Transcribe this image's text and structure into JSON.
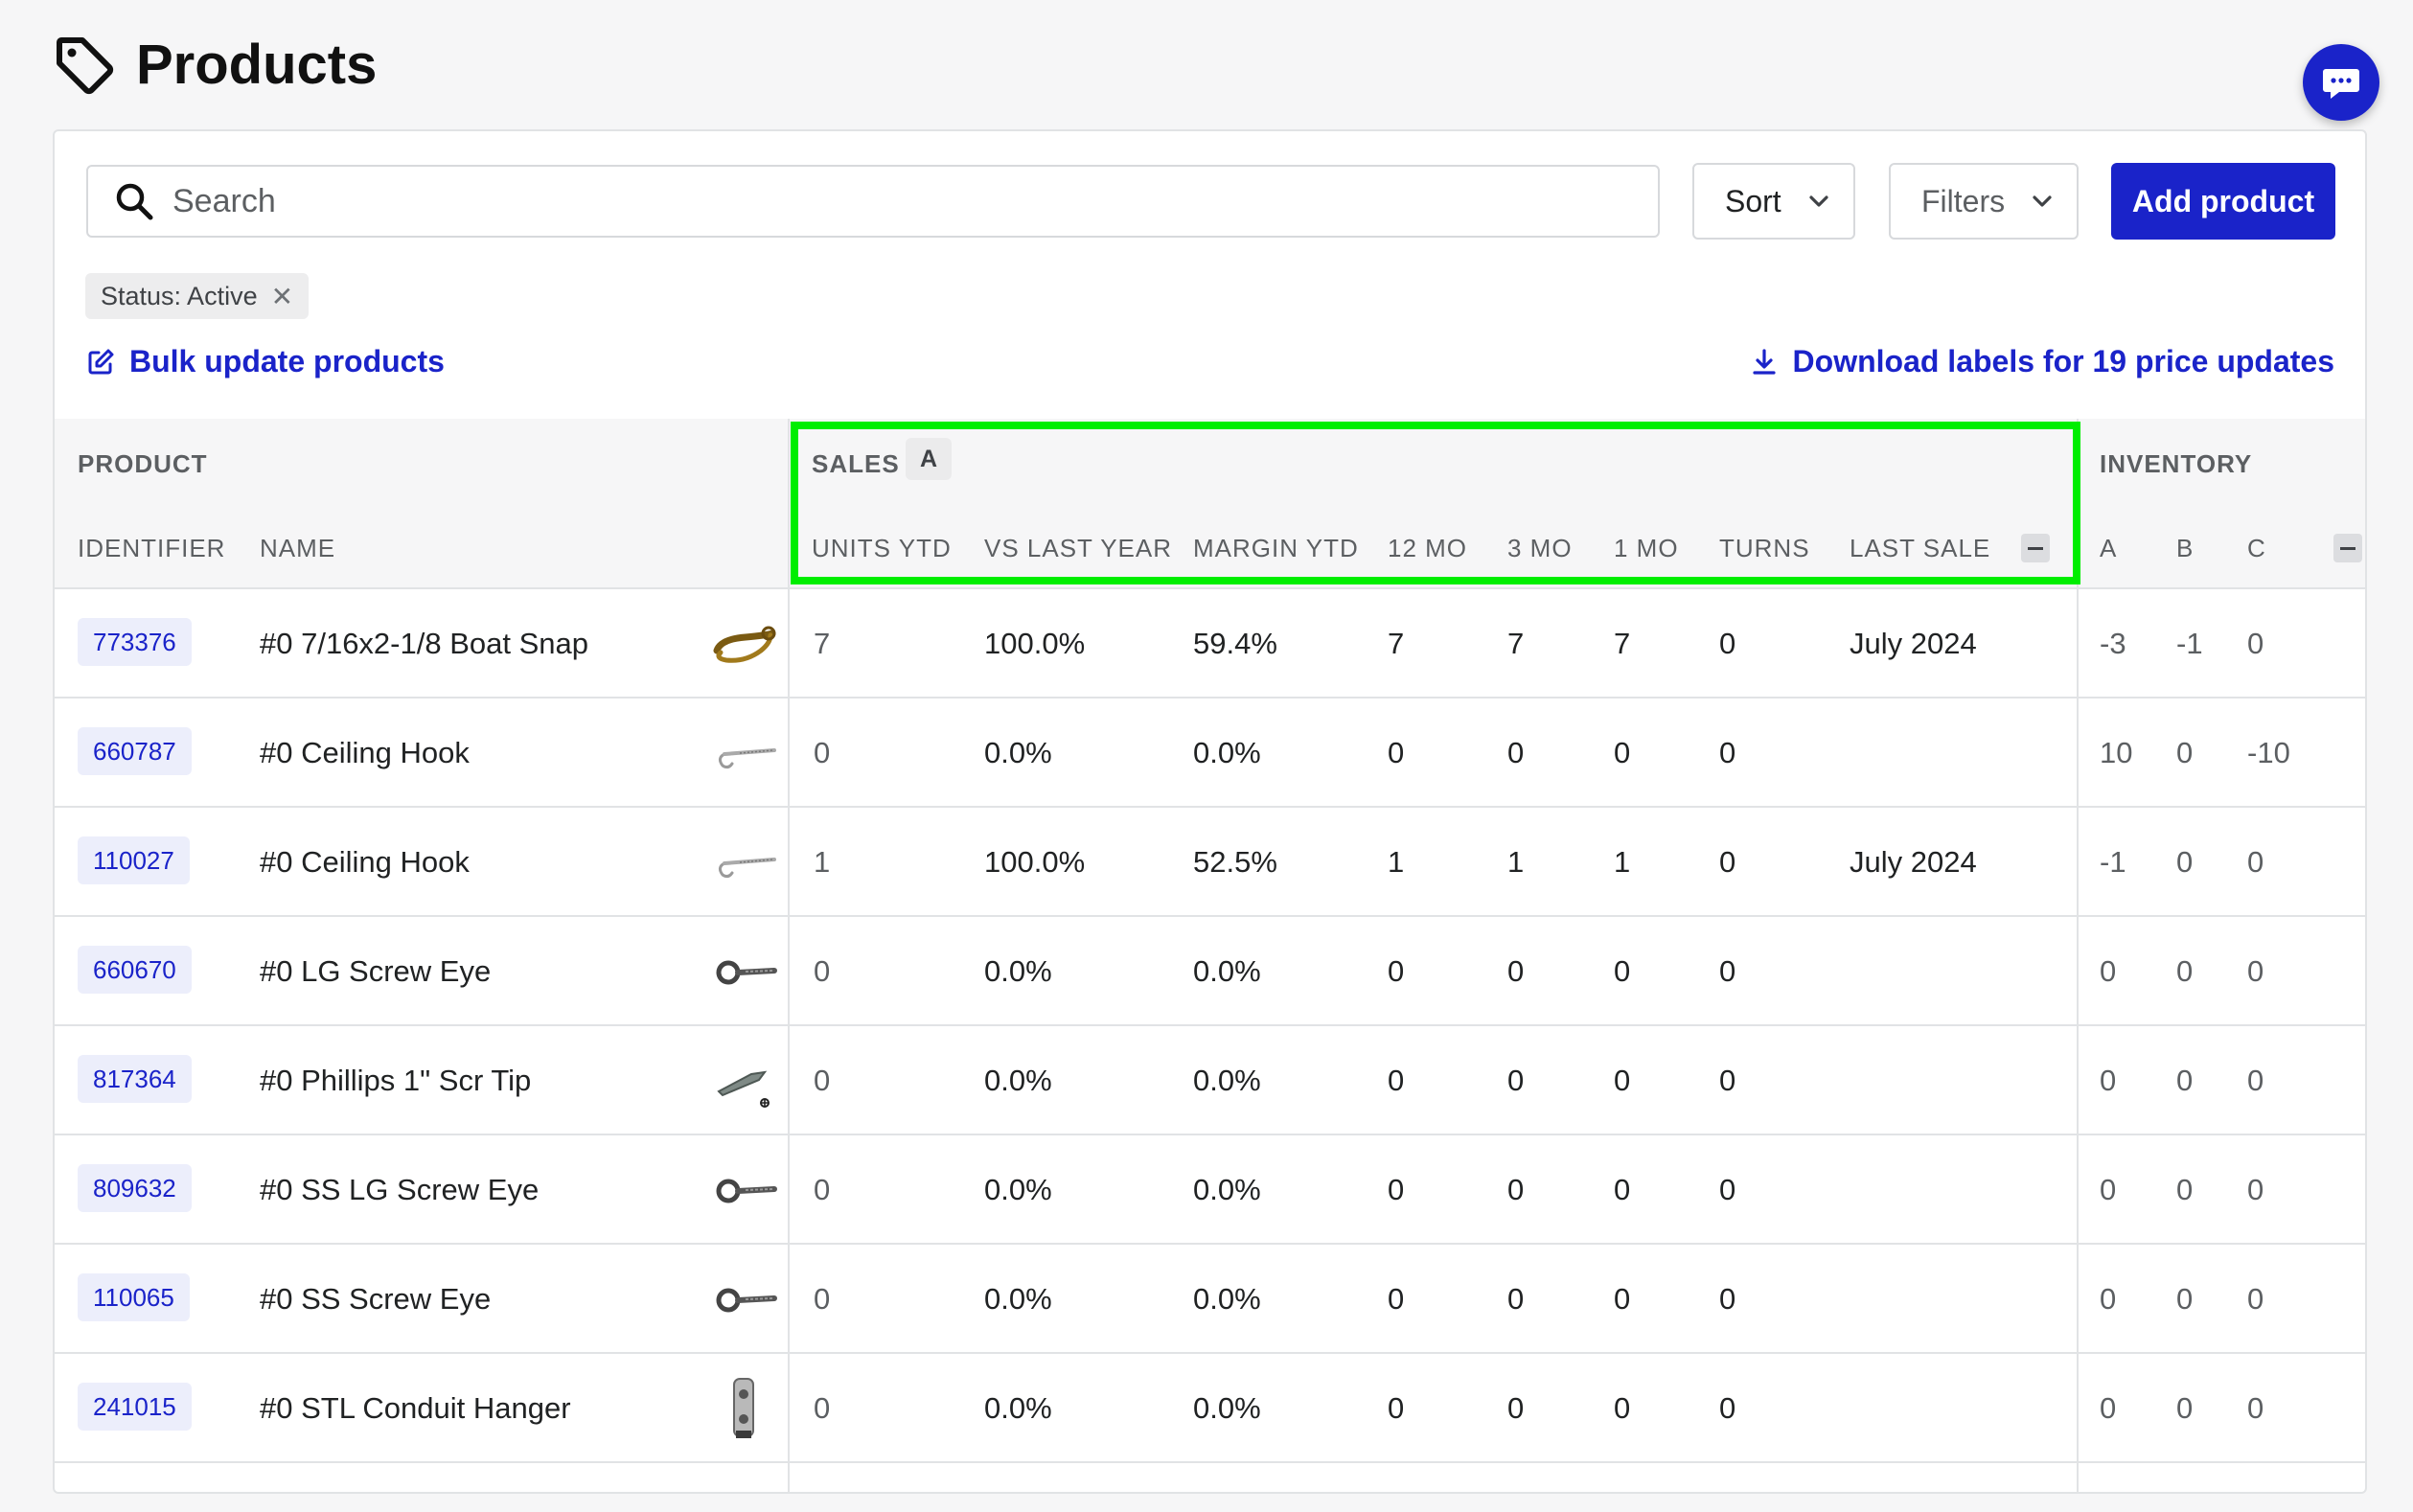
{
  "header": {
    "title": "Products"
  },
  "toolbar": {
    "search_placeholder": "Search",
    "sort_label": "Sort",
    "filters_label": "Filters",
    "add_label": "Add product"
  },
  "filter_chip": {
    "label": "Status: Active",
    "remove_glyph": "✕"
  },
  "links": {
    "bulk": "Bulk update products",
    "download": "Download labels for 19 price updates"
  },
  "table": {
    "groups": {
      "product": "PRODUCT",
      "sales": "SALES",
      "sales_badge": "A",
      "inventory": "INVENTORY"
    },
    "columns": {
      "identifier": "IDENTIFIER",
      "name": "NAME",
      "units_ytd": "UNITS YTD",
      "vs_last_year": "VS LAST YEAR",
      "margin_ytd": "MARGIN YTD",
      "mo12": "12 MO",
      "mo3": "3 MO",
      "mo1": "1 MO",
      "turns": "TURNS",
      "last_sale": "LAST SALE",
      "inv_a": "A",
      "inv_b": "B",
      "inv_c": "C"
    },
    "rows": [
      {
        "id": "773376",
        "name": "#0 7/16x2-1/8 Boat Snap",
        "icon": "boat-snap",
        "units": "7",
        "vs": "100.0%",
        "margin": "59.4%",
        "m12": "7",
        "m3": "7",
        "m1": "7",
        "turns": "0",
        "last_sale": "July 2024",
        "a": "-3",
        "b": "-1",
        "c": "0"
      },
      {
        "id": "660787",
        "name": "#0 Ceiling Hook",
        "icon": "ceiling-hook",
        "units": "0",
        "vs": "0.0%",
        "margin": "0.0%",
        "m12": "0",
        "m3": "0",
        "m1": "0",
        "turns": "0",
        "last_sale": "",
        "a": "10",
        "b": "0",
        "c": "-10"
      },
      {
        "id": "110027",
        "name": "#0 Ceiling Hook",
        "icon": "ceiling-hook",
        "units": "1",
        "vs": "100.0%",
        "margin": "52.5%",
        "m12": "1",
        "m3": "1",
        "m1": "1",
        "turns": "0",
        "last_sale": "July 2024",
        "a": "-1",
        "b": "0",
        "c": "0"
      },
      {
        "id": "660670",
        "name": "#0 LG Screw Eye",
        "icon": "screw-eye",
        "units": "0",
        "vs": "0.0%",
        "margin": "0.0%",
        "m12": "0",
        "m3": "0",
        "m1": "0",
        "turns": "0",
        "last_sale": "",
        "a": "0",
        "b": "0",
        "c": "0"
      },
      {
        "id": "817364",
        "name": "#0 Phillips 1\" Scr Tip",
        "icon": "screw-tip",
        "units": "0",
        "vs": "0.0%",
        "margin": "0.0%",
        "m12": "0",
        "m3": "0",
        "m1": "0",
        "turns": "0",
        "last_sale": "",
        "a": "0",
        "b": "0",
        "c": "0"
      },
      {
        "id": "809632",
        "name": "#0 SS LG Screw Eye",
        "icon": "screw-eye",
        "units": "0",
        "vs": "0.0%",
        "margin": "0.0%",
        "m12": "0",
        "m3": "0",
        "m1": "0",
        "turns": "0",
        "last_sale": "",
        "a": "0",
        "b": "0",
        "c": "0"
      },
      {
        "id": "110065",
        "name": "#0 SS Screw Eye",
        "icon": "screw-eye",
        "units": "0",
        "vs": "0.0%",
        "margin": "0.0%",
        "m12": "0",
        "m3": "0",
        "m1": "0",
        "turns": "0",
        "last_sale": "",
        "a": "0",
        "b": "0",
        "c": "0"
      },
      {
        "id": "241015",
        "name": "#0 STL Conduit Hanger",
        "icon": "conduit-hanger",
        "units": "0",
        "vs": "0.0%",
        "margin": "0.0%",
        "m12": "0",
        "m3": "0",
        "m1": "0",
        "turns": "0",
        "last_sale": "",
        "a": "0",
        "b": "0",
        "c": "0"
      }
    ]
  },
  "colors": {
    "accent": "#1a23c9",
    "highlight": "#00ee00"
  }
}
